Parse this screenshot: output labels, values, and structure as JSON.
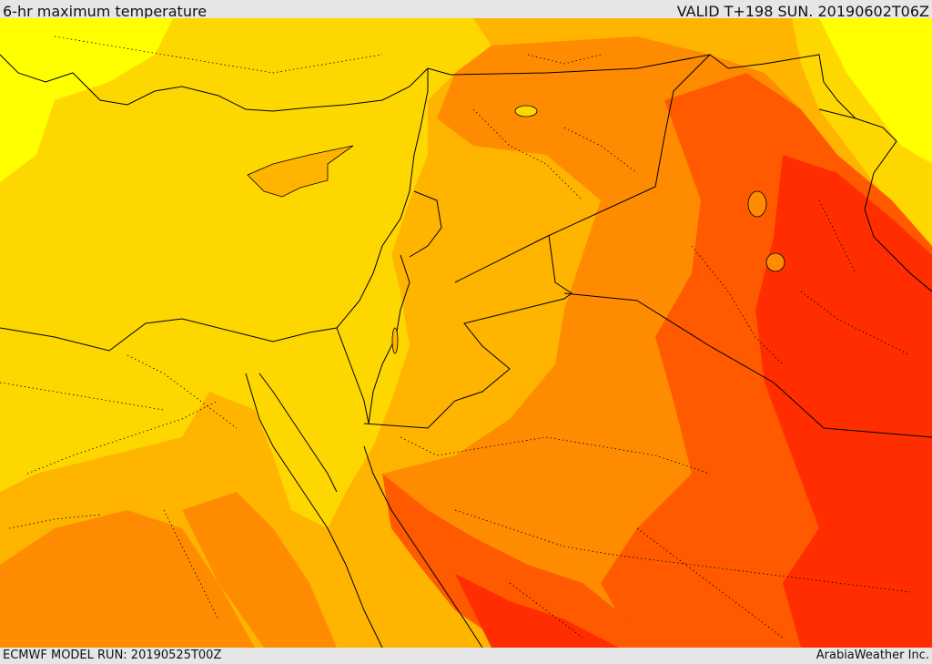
{
  "header": {
    "title": "6-hr maximum temperature",
    "valid": "VALID T+198 SUN. 20190602T06Z"
  },
  "footer": {
    "model_run": "ECMWF MODEL RUN: 20190525T00Z",
    "brand": "ArabiaWeather Inc."
  },
  "colors": {
    "yellow": "#ffff00",
    "gold": "#ffd700",
    "light_orange": "#ffb400",
    "orange": "#ff8c00",
    "red_orange": "#ff5a00",
    "red": "#ff2d00"
  }
}
